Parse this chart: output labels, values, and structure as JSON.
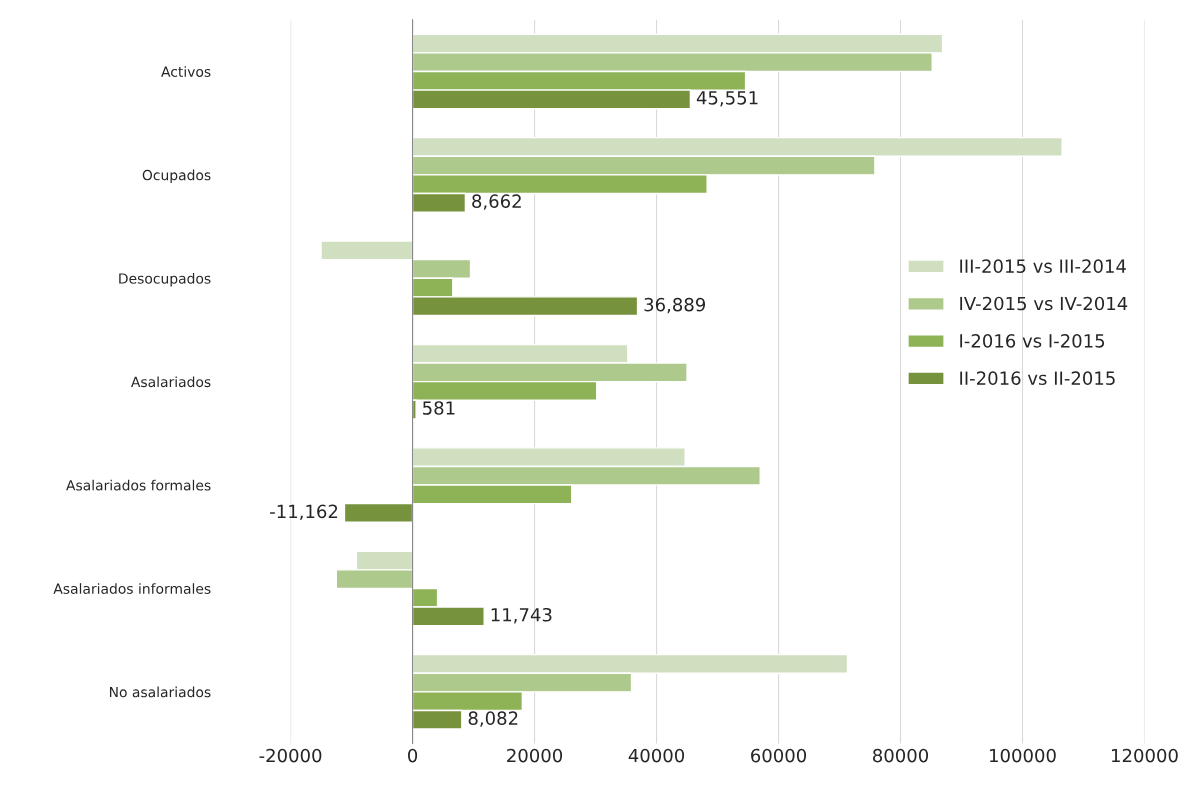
{
  "chart_data": {
    "type": "bar",
    "orientation": "horizontal",
    "categories": [
      "Activos",
      "Ocupados",
      "Desocupados",
      "Asalariados",
      "Asalariados formales",
      "Asalariados informales",
      "No asalariados"
    ],
    "series": [
      {
        "name": "III-2015 vs III-2014",
        "color": "#d0dfc0",
        "values": [
          86900,
          106500,
          -15000,
          35300,
          44700,
          -9200,
          71300
        ]
      },
      {
        "name": "IV-2015 vs IV-2014",
        "color": "#adc98b",
        "values": [
          85200,
          75800,
          9500,
          45000,
          57000,
          -12500,
          35900
        ]
      },
      {
        "name": "I-2016 vs I-2015",
        "color": "#8db356",
        "values": [
          54600,
          48300,
          6600,
          30200,
          26100,
          4100,
          18000
        ]
      },
      {
        "name": "II-2016 vs II-2015",
        "color": "#76923c",
        "values": [
          45551,
          8662,
          36889,
          581,
          -11162,
          11743,
          8082
        ],
        "value_labels": [
          "45,551",
          "8,662",
          "36,889",
          "581",
          "-11,162",
          "11,743",
          "8,082"
        ]
      }
    ],
    "xlim": [
      -20000,
      120000
    ],
    "xticks": [
      -20000,
      0,
      20000,
      40000,
      60000,
      80000,
      100000,
      120000
    ],
    "grid": "x",
    "legend": "right"
  }
}
